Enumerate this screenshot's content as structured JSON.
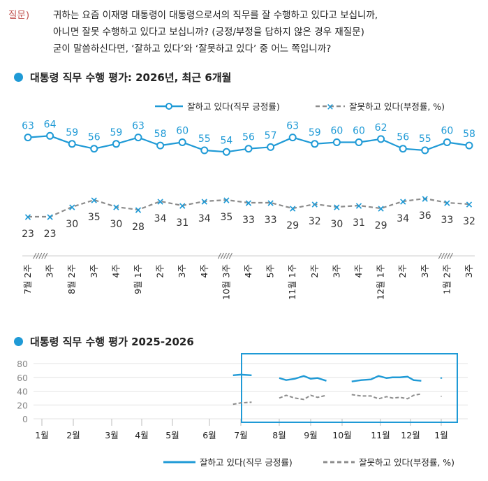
{
  "question": {
    "label": "질문)",
    "lines": [
      "귀하는 요즘 이재명 대통령이 대통령으로서의 직무를 잘 수행하고 있다고 보십니까,",
      "아니면 잘못 수행하고 있다고 보십니까? (긍정/부정을 답하지 않은 경우 재질문)",
      "굳이 말씀하신다면, ‘잘하고 있다’와 ‘잘못하고 있다’ 중 어느 쪽입니까?"
    ]
  },
  "colors": {
    "positive": "#1f9ad6",
    "negative": "#8c8c8c",
    "accent": "#1f9ad6",
    "question": "#c0504d"
  },
  "chart_data": [
    {
      "type": "line",
      "title": "대통령 직무 수행 평가: 2026년, 최근 6개월",
      "categories": [
        "7월 2주",
        "3주",
        "8월 2주",
        "3주",
        "4주",
        "9월 1주",
        "2주",
        "3주",
        "4주",
        "10월 3주",
        "4주",
        "5주",
        "11월 1주",
        "2주",
        "3주",
        "4주",
        "12월 1주",
        "2주",
        "3주",
        "1월 2주",
        "3주"
      ],
      "series": [
        {
          "name": "잘하고 있다(직무 긍정률)",
          "values": [
            63,
            64,
            59,
            56,
            59,
            63,
            58,
            60,
            55,
            54,
            56,
            57,
            63,
            59,
            60,
            60,
            62,
            56,
            55,
            60,
            58
          ]
        },
        {
          "name": "잘못하고 있다(부정률, %)",
          "values": [
            23,
            23,
            30,
            35,
            30,
            28,
            34,
            31,
            34,
            35,
            33,
            33,
            29,
            32,
            30,
            31,
            29,
            34,
            36,
            33,
            32
          ]
        }
      ],
      "ylim": [
        0,
        100
      ],
      "legend_position": "top-right",
      "break_marks": [
        "7월 2주-3주",
        "10월 3주",
        "1월 2주"
      ]
    },
    {
      "type": "line",
      "title": "대통령 직무 수행 평가 2025-2026",
      "x_labels": [
        "1월",
        "2월",
        "3월",
        "4월",
        "5월",
        "6월",
        "7월",
        "8월",
        "9월",
        "10월",
        "11월",
        "12월",
        "1월"
      ],
      "y_ticks": [
        0,
        20,
        40,
        60,
        80
      ],
      "ylim": [
        0,
        80
      ],
      "legend_position": "bottom",
      "highlight_range": [
        "7월",
        "1월"
      ],
      "series": [
        {
          "name": "잘하고 있다(직무 긍정률)",
          "segments": [
            [
              [
                6.75,
                63
              ],
              [
                7.0,
                64
              ],
              [
                7.28,
                63
              ]
            ],
            [
              [
                8.0,
                59
              ],
              [
                8.22,
                56
              ],
              [
                8.5,
                58
              ],
              [
                8.78,
                62
              ],
              [
                9.0,
                58
              ],
              [
                9.22,
                59
              ],
              [
                9.5,
                55
              ]
            ],
            [
              [
                10.25,
                54
              ],
              [
                10.5,
                56
              ],
              [
                10.75,
                57
              ],
              [
                10.95,
                62
              ],
              [
                11.2,
                59
              ],
              [
                11.4,
                60
              ],
              [
                11.65,
                60
              ],
              [
                11.9,
                61
              ],
              [
                12.1,
                56
              ],
              [
                12.35,
                55
              ]
            ],
            [
              [
                13.3,
                60
              ],
              [
                13.55,
                58
              ]
            ]
          ]
        },
        {
          "name": "잘못하고 있다(부정률, %)",
          "segments": [
            [
              [
                6.75,
                21
              ],
              [
                7.0,
                23
              ],
              [
                7.28,
                24
              ]
            ],
            [
              [
                8.0,
                30
              ],
              [
                8.22,
                34
              ],
              [
                8.5,
                30
              ],
              [
                8.78,
                28
              ],
              [
                9.0,
                34
              ],
              [
                9.22,
                31
              ],
              [
                9.5,
                34
              ]
            ],
            [
              [
                10.25,
                35
              ],
              [
                10.5,
                33
              ],
              [
                10.75,
                33
              ],
              [
                10.95,
                29
              ],
              [
                11.2,
                32
              ],
              [
                11.4,
                30
              ],
              [
                11.65,
                31
              ],
              [
                11.9,
                29
              ],
              [
                12.1,
                34
              ],
              [
                12.35,
                36
              ]
            ],
            [
              [
                13.3,
                33
              ],
              [
                13.55,
                32
              ]
            ]
          ]
        }
      ]
    }
  ]
}
